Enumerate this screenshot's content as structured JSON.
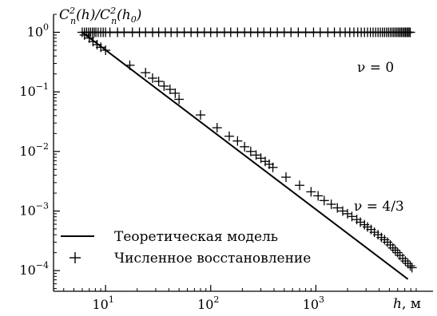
{
  "chart_data": {
    "type": "line",
    "title": "",
    "ylabel": "C_n^2(h)/C_n^2(h_0)",
    "xlabel": "h, м",
    "x_scale": "log",
    "y_scale": "log",
    "xlim": [
      3.2,
      13000
    ],
    "ylim": [
      4.5e-05,
      2.0
    ],
    "grid": false,
    "x_ticks": [
      {
        "value": 10,
        "base": "10",
        "exp": "1"
      },
      {
        "value": 100,
        "base": "10",
        "exp": "2"
      },
      {
        "value": 1000,
        "base": "10",
        "exp": "3"
      }
    ],
    "y_ticks": [
      {
        "value": 1,
        "base": "10",
        "exp": "0"
      },
      {
        "value": 0.1,
        "base": "10",
        "exp": "−1"
      },
      {
        "value": 0.01,
        "base": "10",
        "exp": "−2"
      },
      {
        "value": 0.001,
        "base": "10",
        "exp": "−3"
      },
      {
        "value": 0.0001,
        "base": "10",
        "exp": "−4"
      }
    ],
    "annotations": [
      {
        "text": "ν = 0",
        "x": 2500,
        "y": 0.58
      },
      {
        "text": "ν = 4/3",
        "x": 2000,
        "y": 0.0012
      }
    ],
    "legend": {
      "placement": "bottom-left",
      "entries": [
        {
          "label": "Теоретическая модель",
          "marker": "line"
        },
        {
          "label": "Численное восстановление",
          "marker": "plus"
        }
      ]
    },
    "series": [
      {
        "label": "Теоретическая модель, ν = 0",
        "style": "line",
        "x": [
          6,
          8300
        ],
        "y": [
          1,
          1
        ]
      },
      {
        "label": "Теоретическая модель, ν = 4/3",
        "style": "line",
        "x": [
          6,
          7500
        ],
        "y": [
          1,
          7.2e-05
        ]
      },
      {
        "label": "Численное восстановление, ν = 0",
        "style": "plus",
        "x": [
          6,
          6.3,
          6.6,
          6.9,
          7.2,
          7.5,
          7.8,
          8.1,
          8.5,
          9,
          9.5,
          10,
          11,
          13,
          15,
          18,
          21,
          24,
          28,
          32,
          37,
          42,
          48,
          56,
          65,
          75,
          87,
          100,
          115,
          135,
          155,
          180,
          210,
          240,
          280,
          320,
          370,
          430,
          500,
          580,
          680,
          800,
          950,
          1100,
          1300,
          1500,
          1700,
          1900,
          2100,
          2300,
          2500,
          2700,
          2900,
          3100,
          3300,
          3500,
          3700,
          3900,
          4100,
          4300,
          4500,
          4700,
          4900,
          5100,
          5300,
          5500,
          5700,
          5900,
          6100,
          6300,
          6500,
          6700,
          6900,
          7100,
          7300,
          7500,
          7700,
          7900
        ],
        "y": [
          1,
          1,
          1,
          1,
          1,
          1,
          1,
          1,
          1,
          1,
          1,
          1,
          1,
          1,
          1,
          1,
          1,
          1,
          1,
          1,
          1,
          1,
          1,
          1,
          1,
          1,
          1,
          1,
          1,
          1,
          1,
          1,
          1,
          1,
          1,
          1,
          1,
          1,
          1,
          1,
          1,
          1,
          1,
          1,
          1,
          1,
          1,
          1,
          1,
          1,
          1,
          1,
          1,
          1,
          1,
          1,
          1,
          1,
          1,
          1,
          1,
          1,
          1,
          1,
          1,
          1,
          1,
          1,
          1,
          1,
          1,
          1,
          1,
          1,
          1,
          1,
          1,
          1
        ]
      },
      {
        "label": "Численное восстановление, ν = 4/3",
        "style": "plus",
        "x": [
          6.3,
          7,
          7.6,
          8.3,
          9,
          10,
          17,
          24,
          28,
          32,
          36,
          41,
          46,
          50,
          80,
          115,
          150,
          180,
          210,
          240,
          270,
          300,
          330,
          360,
          390,
          520,
          700,
          900,
          1050,
          1200,
          1400,
          1600,
          1800,
          2000,
          2200,
          2450,
          2650,
          2900,
          3100,
          3350,
          3600,
          3900,
          4200,
          4500,
          4800,
          5100,
          5400,
          5700,
          6000,
          6300,
          6700,
          7100,
          7500,
          7900,
          8200
        ],
        "y": [
          0.9,
          0.8,
          0.7,
          0.62,
          0.56,
          0.5,
          0.28,
          0.21,
          0.17,
          0.15,
          0.125,
          0.11,
          0.095,
          0.075,
          0.041,
          0.025,
          0.018,
          0.015,
          0.012,
          0.01,
          0.0087,
          0.0077,
          0.0068,
          0.0061,
          0.0054,
          0.0037,
          0.0027,
          0.0021,
          0.0018,
          0.0015,
          0.0013,
          0.00113,
          0.001,
          0.0009,
          0.00081,
          0.00072,
          0.00065,
          0.00059,
          0.00054,
          0.00049,
          0.00044,
          0.0004,
          0.00036,
          0.00033,
          0.0003,
          0.00027,
          0.00024,
          0.00022,
          0.0002,
          0.00018,
          0.00016,
          0.000145,
          0.000132,
          0.00012,
          0.000112
        ]
      }
    ]
  }
}
